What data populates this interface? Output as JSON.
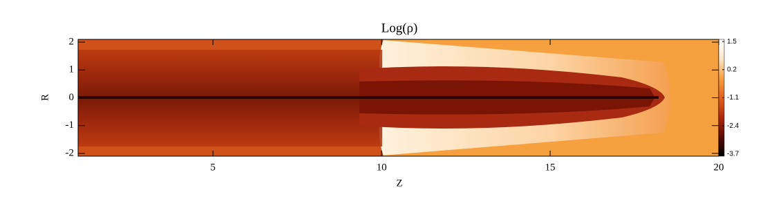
{
  "chart_data": {
    "type": "heatmap",
    "title": "Log(ρ)",
    "xlabel": "Z",
    "ylabel": "R",
    "xlim": [
      1,
      20
    ],
    "xticks": [
      5,
      10,
      15,
      20
    ],
    "ylim": [
      -2.1,
      2.1
    ],
    "yticks": [
      -2,
      -1,
      0,
      1,
      2
    ],
    "colorbar": {
      "lim": [
        -3.8,
        1.6
      ],
      "ticks": [
        1.5,
        0.2,
        -1.1,
        -2.4,
        -3.7
      ],
      "colors": [
        "#000000",
        "#5a0a02",
        "#b02a0c",
        "#e0601e",
        "#f7a040",
        "#fde6c8",
        "#ffffff"
      ]
    }
  }
}
